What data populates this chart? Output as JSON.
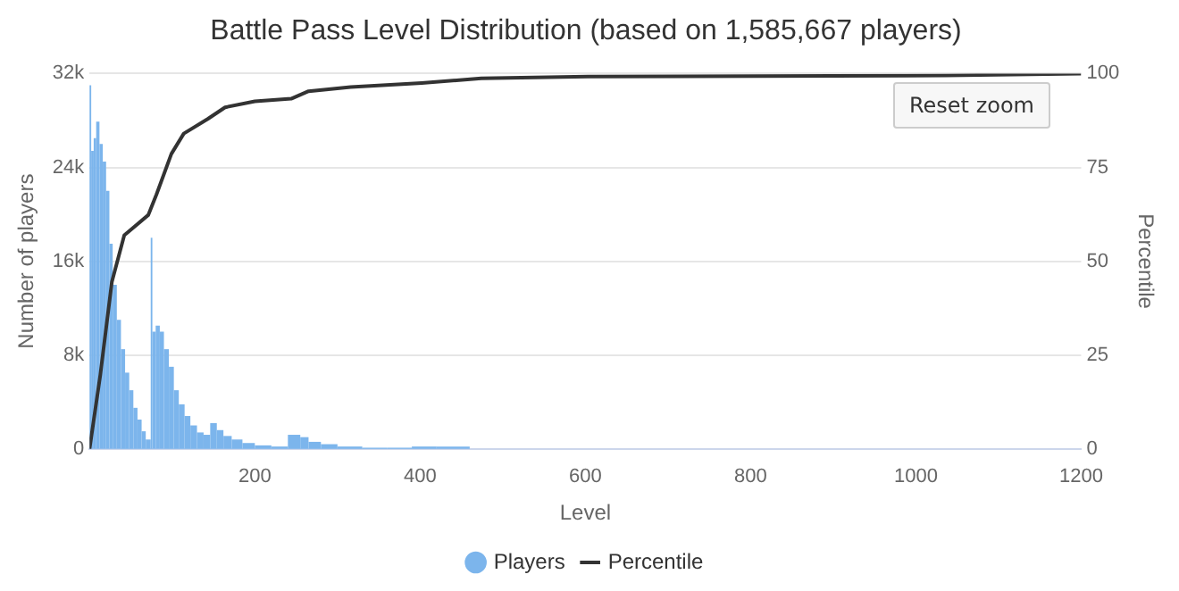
{
  "chart_data": {
    "type": "histogram",
    "title": "Battle Pass Level Distribution (based on 1,585,667 players)",
    "xlabel": "Level",
    "ylabel": "Number of players",
    "y2label": "Percentile",
    "xlim": [
      0,
      1200
    ],
    "xticks": [
      200,
      400,
      600,
      800,
      1000,
      1200
    ],
    "ylim": [
      0,
      32000
    ],
    "yticks": [
      {
        "value": 0,
        "label": "0"
      },
      {
        "value": 8000,
        "label": "8k"
      },
      {
        "value": 16000,
        "label": "16k"
      },
      {
        "value": 24000,
        "label": "24k"
      },
      {
        "value": 32000,
        "label": "32k"
      }
    ],
    "y2lim": [
      0,
      100
    ],
    "y2ticks": [
      0,
      25,
      50,
      75,
      100
    ],
    "grid": "y",
    "legend": "bottom",
    "annotations": [
      "Reset zoom"
    ],
    "series": [
      {
        "name": "Players",
        "color": "#7cb5ec",
        "bins": [
          0,
          2,
          5,
          8,
          12,
          16,
          20,
          24,
          28,
          33,
          38,
          43,
          48,
          53,
          58,
          63,
          68,
          74,
          76,
          80,
          85,
          90,
          96,
          102,
          108,
          115,
          122,
          130,
          138,
          146,
          154,
          162,
          172,
          185,
          200,
          220,
          240,
          255,
          265,
          280,
          300,
          330,
          360,
          390,
          420,
          460
        ],
        "values": [
          31000,
          25400,
          26500,
          27900,
          26000,
          24500,
          22000,
          17500,
          14000,
          11000,
          8500,
          6500,
          5000,
          3500,
          2500,
          1500,
          800,
          18000,
          10000,
          10500,
          10000,
          8500,
          7000,
          5000,
          3800,
          2800,
          2000,
          1400,
          1200,
          2200,
          1600,
          1100,
          800,
          500,
          300,
          200,
          1200,
          1000,
          600,
          400,
          200,
          100,
          100,
          200,
          200
        ]
      },
      {
        "name": "Percentile",
        "type": "line",
        "axis": "y2",
        "color": "#333333",
        "x": [
          0,
          13,
          27,
          42,
          71,
          81,
          99,
          114,
          143,
          164,
          200,
          244,
          265,
          316,
          402,
          474,
          603,
          1036,
          1200
        ],
        "values": [
          0,
          19.7,
          44.5,
          56.9,
          62.3,
          67.8,
          78.6,
          84,
          87.9,
          91,
          92.6,
          93.3,
          95.3,
          96.4,
          97.5,
          98.7,
          99.2,
          99.5,
          100
        ]
      }
    ]
  }
}
